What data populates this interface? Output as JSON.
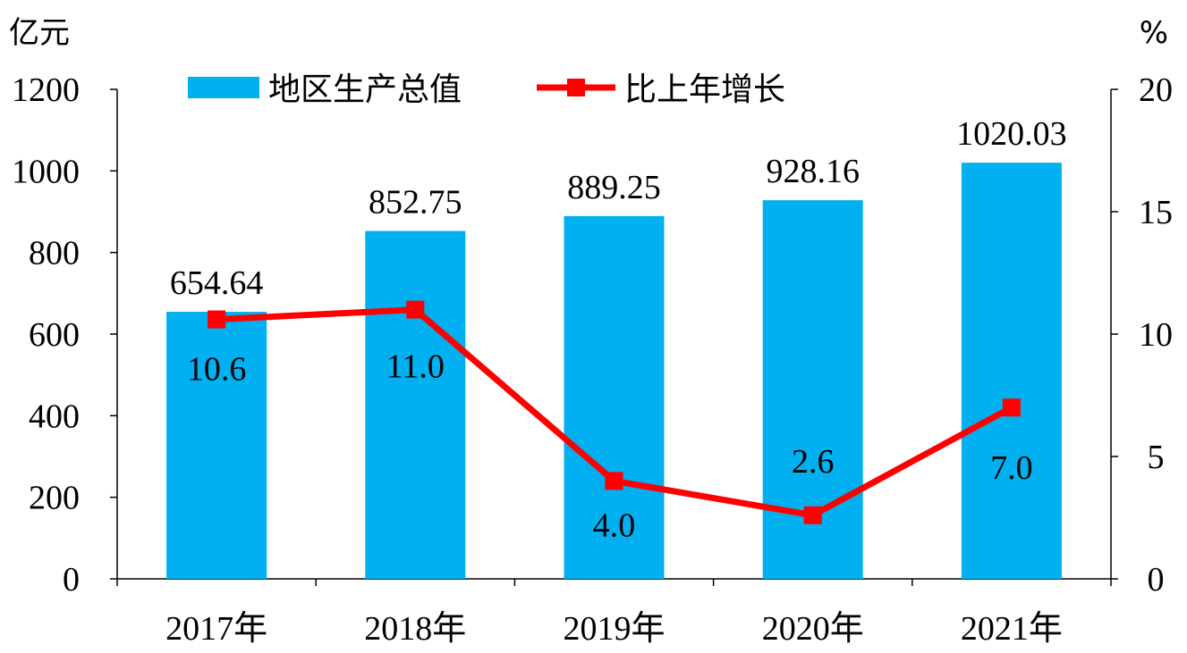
{
  "chart_data": {
    "type": "bar",
    "categories": [
      "2017年",
      "2018年",
      "2019年",
      "2020年",
      "2021年"
    ],
    "series": [
      {
        "name": "地区生产总值",
        "type": "bar",
        "axis": "left",
        "values": [
          654.64,
          852.75,
          889.25,
          928.16,
          1020.03
        ],
        "labels": [
          "654.64",
          "852.75",
          "889.25",
          "928.16",
          "1020.03"
        ],
        "color": "#00b0f0"
      },
      {
        "name": "比上年增长",
        "type": "line",
        "axis": "right",
        "values": [
          10.6,
          11.0,
          4.0,
          2.6,
          7.0
        ],
        "labels": [
          "10.6",
          "11.0",
          "4.0",
          "2.6",
          "7.0"
        ],
        "color": "#ff0000"
      }
    ],
    "y_left": {
      "unit": "亿元",
      "ylim": [
        0,
        1200
      ],
      "ticks": [
        "0",
        "200",
        "400",
        "600",
        "800",
        "1000",
        "1200"
      ]
    },
    "y_right": {
      "unit": "%",
      "ylim": [
        0,
        20
      ],
      "ticks": [
        "0",
        "5",
        "10",
        "15",
        "20"
      ]
    },
    "grid": false,
    "legend": "top"
  }
}
